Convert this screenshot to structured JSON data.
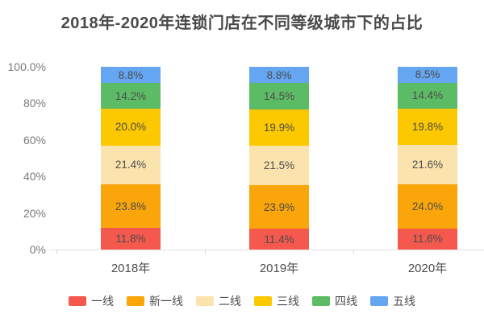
{
  "title": "2018年-2020年连锁门店在不同等级城市下的占比",
  "chart_data": {
    "type": "bar",
    "stacked": true,
    "title": "2018年-2020年连锁门店在不同等级城市下的占比",
    "categories": [
      "2018年",
      "2019年",
      "2020年"
    ],
    "series": [
      {
        "name": "一线",
        "color": "#F5584C",
        "values": [
          11.8,
          11.4,
          11.6
        ]
      },
      {
        "name": "新一线",
        "color": "#FAA50A",
        "values": [
          23.8,
          23.9,
          24.0
        ]
      },
      {
        "name": "二线",
        "color": "#FBE3AE",
        "values": [
          21.4,
          21.5,
          21.6
        ]
      },
      {
        "name": "三线",
        "color": "#FCC800",
        "values": [
          20.0,
          19.9,
          19.8
        ]
      },
      {
        "name": "四线",
        "color": "#5CBC66",
        "values": [
          14.2,
          14.5,
          14.4
        ]
      },
      {
        "name": "五线",
        "color": "#64A6F2",
        "values": [
          8.8,
          8.8,
          8.5
        ]
      }
    ],
    "y_axis": {
      "ylim": [
        0,
        100
      ],
      "ticks": [
        {
          "value": 0,
          "label": "0%"
        },
        {
          "value": 20,
          "label": "20%"
        },
        {
          "value": 40,
          "label": "40%"
        },
        {
          "value": 60,
          "label": "60%"
        },
        {
          "value": 80,
          "label": "80%"
        },
        {
          "value": 100,
          "label": "100.0%"
        }
      ]
    },
    "data_label_suffix": "%",
    "grid": false,
    "legend_position": "bottom"
  }
}
